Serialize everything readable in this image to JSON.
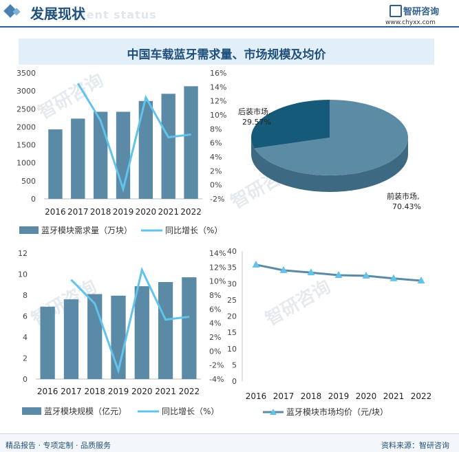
{
  "header": {
    "title": "发展现状",
    "subtitle": "ment status",
    "logo_text": "智研咨询",
    "logo_url": "www.chyxx.com"
  },
  "main_title": "中国车载蓝牙需求量、市场规模及均价",
  "footer": {
    "left": "精品报告 · 专项定制 · 品质服务",
    "right": "资料来源：智研咨询"
  },
  "watermark": "智研咨询",
  "colors": {
    "bar": "#5b8aa6",
    "line": "#62c3ea",
    "pie_main": "#5c8ba6",
    "pie_small": "#155a79",
    "price_line": "#5b8aa6",
    "price_marker": "#62c3ea"
  },
  "chart_data": [
    {
      "type": "bar",
      "categories": [
        "2016",
        "2017",
        "2018",
        "2019",
        "2020",
        "2021",
        "2022"
      ],
      "series": [
        {
          "name": "蓝牙模块需求量（万块）",
          "type": "bar",
          "axis": "left",
          "values": [
            1930,
            2230,
            2420,
            2420,
            2720,
            2920,
            3130
          ]
        },
        {
          "name": "同比增长（%）",
          "type": "line",
          "axis": "right",
          "values": [
            null,
            14.5,
            9.2,
            -0.6,
            12.5,
            6.8,
            7.2
          ]
        }
      ],
      "left_ticks": [
        "0",
        "500",
        "1000",
        "1500",
        "2000",
        "2500",
        "3000",
        "3500"
      ],
      "right_ticks": [
        "-2%",
        "0%",
        "2%",
        "4%",
        "6%",
        "8%",
        "10%",
        "12%",
        "14%",
        "16%"
      ],
      "ylim_left": [
        0,
        3500
      ],
      "ylim_right": [
        -2,
        16
      ],
      "legend_position": "bottom"
    },
    {
      "type": "pie",
      "slices": [
        {
          "label": "前装市场,",
          "pct_label": "70.43%",
          "value": 70.43
        },
        {
          "label": "后装市场,",
          "pct_label": "29.57%",
          "value": 29.57
        }
      ]
    },
    {
      "type": "bar",
      "categories": [
        "2016",
        "2017",
        "2018",
        "2019",
        "2020",
        "2021",
        "2022"
      ],
      "series": [
        {
          "name": "蓝牙模块规模（亿元）",
          "type": "bar",
          "axis": "left",
          "values": [
            6.9,
            7.6,
            8.1,
            7.95,
            8.85,
            9.25,
            9.7
          ]
        },
        {
          "name": "同比增长（%）",
          "type": "line",
          "axis": "right",
          "values": [
            null,
            10.2,
            6.8,
            -2.8,
            11.6,
            4.5,
            4.9
          ]
        }
      ],
      "left_ticks": [
        "0",
        "2",
        "4",
        "6",
        "8",
        "10",
        "12"
      ],
      "right_ticks": [
        "-4%",
        "-2%",
        "0%",
        "2%",
        "4%",
        "6%",
        "8%",
        "10%",
        "12%",
        "14%"
      ],
      "ylim_left": [
        0,
        12
      ],
      "ylim_right": [
        -4,
        14
      ],
      "legend_position": "bottom"
    },
    {
      "type": "line",
      "categories": [
        "2016",
        "2017",
        "2018",
        "2019",
        "2020",
        "2021",
        "2022"
      ],
      "series": [
        {
          "name": "蓝牙模块市场均价（元/块）",
          "values": [
            35.8,
            34.1,
            33.4,
            32.6,
            32.4,
            31.6,
            30.9
          ]
        }
      ],
      "left_ticks": [
        "0",
        "5",
        "10",
        "15",
        "20",
        "25",
        "30",
        "35",
        "40"
      ],
      "ylim": [
        0,
        40
      ],
      "legend_position": "bottom"
    }
  ]
}
